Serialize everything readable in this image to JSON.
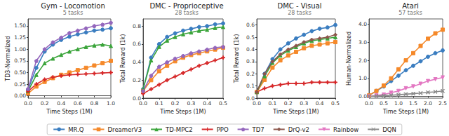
{
  "chart_data": [
    {
      "type": "line",
      "title": "Gym - Locomotion",
      "subtitle": "5 tasks",
      "x_label": "Time Steps (1M)",
      "y_label": "TD3-Normalized",
      "x": [
        0,
        0.1,
        0.2,
        0.3,
        0.4,
        0.5,
        0.6,
        0.7,
        0.8,
        0.9,
        1.0
      ],
      "xlim": [
        0,
        1.0
      ],
      "xticks": [
        {
          "value": 0,
          "label": "0.0"
        },
        0.2,
        0.4,
        0.6,
        0.8,
        {
          "value": 1,
          "label": "1.0"
        }
      ],
      "ylim": [
        -0.05,
        1.65
      ],
      "yticks": [
        {
          "value": 0,
          "label": "0.00"
        },
        0.25,
        {
          "value": 0.5,
          "label": "0.50"
        },
        0.75,
        {
          "value": 1,
          "label": "1.00"
        },
        1.25,
        {
          "value": 1.5,
          "label": "1.50"
        }
      ],
      "grid": false,
      "legend": "bottom",
      "series": [
        {
          "name": "MR.Q",
          "color": "#3a7dc0",
          "marker": "circle",
          "values": [
            0.13,
            0.6,
            0.95,
            1.1,
            1.2,
            1.27,
            1.32,
            1.36,
            1.4,
            1.42,
            1.45
          ]
        },
        {
          "name": "DreamerV3",
          "color": "#f5892a",
          "marker": "square",
          "values": [
            0.05,
            0.2,
            0.3,
            0.38,
            0.45,
            0.5,
            0.55,
            0.6,
            0.65,
            0.7,
            0.75
          ]
        },
        {
          "name": "TD-MPC2",
          "color": "#3aa43a",
          "marker": "triangle",
          "values": [
            0.1,
            0.45,
            0.7,
            0.8,
            0.88,
            0.95,
            1.0,
            1.05,
            1.08,
            1.1,
            1.07
          ]
        },
        {
          "name": "PPO",
          "color": "#d62728",
          "marker": "plus",
          "values": [
            0.1,
            0.25,
            0.35,
            0.4,
            0.43,
            0.45,
            0.46,
            0.47,
            0.48,
            0.49,
            0.5
          ]
        },
        {
          "name": "TD7",
          "color": "#9467bd",
          "marker": "pentagon",
          "values": [
            0.15,
            0.75,
            1.0,
            1.15,
            1.25,
            1.35,
            1.4,
            1.45,
            1.5,
            1.53,
            1.57
          ]
        }
      ]
    },
    {
      "type": "line",
      "title": "DMC - Proprioceptive",
      "subtitle": "28 tasks",
      "x_label": "Time Steps (1M)",
      "y_label": "Total Reward (1k)",
      "x": [
        0,
        0.05,
        0.1,
        0.15,
        0.2,
        0.25,
        0.3,
        0.35,
        0.4,
        0.45,
        0.5
      ],
      "xlim": [
        0,
        0.5
      ],
      "xticks": [
        {
          "value": 0,
          "label": "0.0"
        },
        0.1,
        0.2,
        0.3,
        0.4,
        0.5
      ],
      "ylim": [
        0,
        0.88
      ],
      "yticks": [
        {
          "value": 0,
          "label": "0.0"
        },
        0.2,
        0.4,
        0.6,
        0.8
      ],
      "grid": false,
      "legend": "bottom",
      "series": [
        {
          "name": "MR.Q",
          "color": "#3a7dc0",
          "marker": "circle",
          "values": [
            0.1,
            0.45,
            0.6,
            0.68,
            0.72,
            0.75,
            0.77,
            0.79,
            0.8,
            0.82,
            0.83
          ]
        },
        {
          "name": "DreamerV3",
          "color": "#f5892a",
          "marker": "square",
          "values": [
            0.08,
            0.2,
            0.3,
            0.36,
            0.41,
            0.45,
            0.48,
            0.5,
            0.52,
            0.54,
            0.56
          ]
        },
        {
          "name": "TD-MPC2",
          "color": "#3aa43a",
          "marker": "triangle",
          "values": [
            0.1,
            0.42,
            0.57,
            0.64,
            0.68,
            0.71,
            0.73,
            0.75,
            0.76,
            0.78,
            0.79
          ]
        },
        {
          "name": "PPO",
          "color": "#d62728",
          "marker": "plus",
          "values": [
            0.05,
            0.1,
            0.15,
            0.2,
            0.24,
            0.28,
            0.32,
            0.36,
            0.39,
            0.42,
            0.45
          ]
        },
        {
          "name": "TD7",
          "color": "#9467bd",
          "marker": "pentagon",
          "values": [
            0.08,
            0.25,
            0.35,
            0.4,
            0.44,
            0.47,
            0.5,
            0.52,
            0.54,
            0.56,
            0.57
          ]
        }
      ]
    },
    {
      "type": "line",
      "title": "DMC - Visual",
      "subtitle": "28 tasks",
      "x_label": "Time Steps (1M)",
      "y_label": "Total Reward (1k)",
      "x": [
        0,
        0.05,
        0.1,
        0.15,
        0.2,
        0.25,
        0.3,
        0.35,
        0.4,
        0.45,
        0.5
      ],
      "xlim": [
        0,
        0.5
      ],
      "xticks": [
        {
          "value": 0,
          "label": "0.0"
        },
        0.1,
        0.2,
        0.3,
        0.4,
        0.5
      ],
      "ylim": [
        0,
        0.65
      ],
      "yticks": [
        {
          "value": 0,
          "label": "0.0"
        },
        0.1,
        0.2,
        0.3,
        0.4,
        0.5,
        0.6
      ],
      "grid": false,
      "legend": "bottom",
      "series": [
        {
          "name": "MR.Q",
          "color": "#3a7dc0",
          "marker": "circle",
          "values": [
            0.05,
            0.2,
            0.32,
            0.4,
            0.45,
            0.49,
            0.52,
            0.55,
            0.57,
            0.58,
            0.6
          ]
        },
        {
          "name": "DreamerV3",
          "color": "#f5892a",
          "marker": "square",
          "values": [
            0.05,
            0.15,
            0.25,
            0.31,
            0.35,
            0.38,
            0.41,
            0.43,
            0.44,
            0.45,
            0.46
          ]
        },
        {
          "name": "TD-MPC2",
          "color": "#3aa43a",
          "marker": "triangle",
          "values": [
            0.05,
            0.18,
            0.29,
            0.35,
            0.39,
            0.42,
            0.45,
            0.47,
            0.48,
            0.49,
            0.5
          ]
        },
        {
          "name": "PPO",
          "color": "#d62728",
          "marker": "plus",
          "values": [
            0.05,
            0.08,
            0.1,
            0.11,
            0.12,
            0.12,
            0.12,
            0.13,
            0.13,
            0.13,
            0.13
          ]
        },
        {
          "name": "DrQ-v2",
          "color": "#8c564b",
          "marker": "diamond",
          "values": [
            0.05,
            0.2,
            0.3,
            0.36,
            0.4,
            0.43,
            0.46,
            0.48,
            0.49,
            0.5,
            0.52
          ]
        }
      ]
    },
    {
      "type": "line",
      "title": "Atari",
      "subtitle": "57 tasks",
      "x_label": "Time Steps (1M)",
      "y_label": "Human-Normalized",
      "x": [
        0,
        0.25,
        0.5,
        0.75,
        1.0,
        1.25,
        1.5,
        1.75,
        2.0,
        2.25,
        2.5
      ],
      "xlim": [
        0,
        2.5
      ],
      "xticks": [
        {
          "value": 0,
          "label": "0.0"
        },
        0.5,
        {
          "value": 1,
          "label": "1.0"
        },
        1.5,
        {
          "value": 2,
          "label": "2.0"
        },
        2.5
      ],
      "ylim": [
        -0.1,
        4.3
      ],
      "yticks": [
        {
          "value": 0,
          "label": "0.0"
        },
        {
          "value": 1,
          "label": "1.0"
        },
        {
          "value": 2,
          "label": "2.0"
        },
        {
          "value": 3,
          "label": "3.0"
        },
        {
          "value": 4,
          "label": "4.0"
        }
      ],
      "grid": false,
      "legend": "bottom",
      "series": [
        {
          "name": "MR.Q",
          "color": "#3a7dc0",
          "marker": "circle",
          "values": [
            0.05,
            0.3,
            0.55,
            0.85,
            1.15,
            1.45,
            1.7,
            1.95,
            2.2,
            2.4,
            2.55
          ]
        },
        {
          "name": "DreamerV3",
          "color": "#f5892a",
          "marker": "square",
          "values": [
            0.05,
            0.3,
            0.6,
            1.0,
            1.5,
            2.0,
            2.4,
            2.8,
            3.2,
            3.5,
            3.7
          ]
        },
        {
          "name": "Rainbow",
          "color": "#e377c2",
          "marker": "triangle-down",
          "values": [
            0.0,
            0.05,
            0.1,
            0.2,
            0.3,
            0.45,
            0.55,
            0.7,
            0.85,
            0.95,
            1.05
          ]
        },
        {
          "name": "DQN",
          "color": "#8a8a8a",
          "marker": "x",
          "values": [
            0.0,
            0.02,
            0.04,
            0.06,
            0.09,
            0.12,
            0.15,
            0.18,
            0.22,
            0.25,
            0.3
          ]
        }
      ]
    }
  ]
}
